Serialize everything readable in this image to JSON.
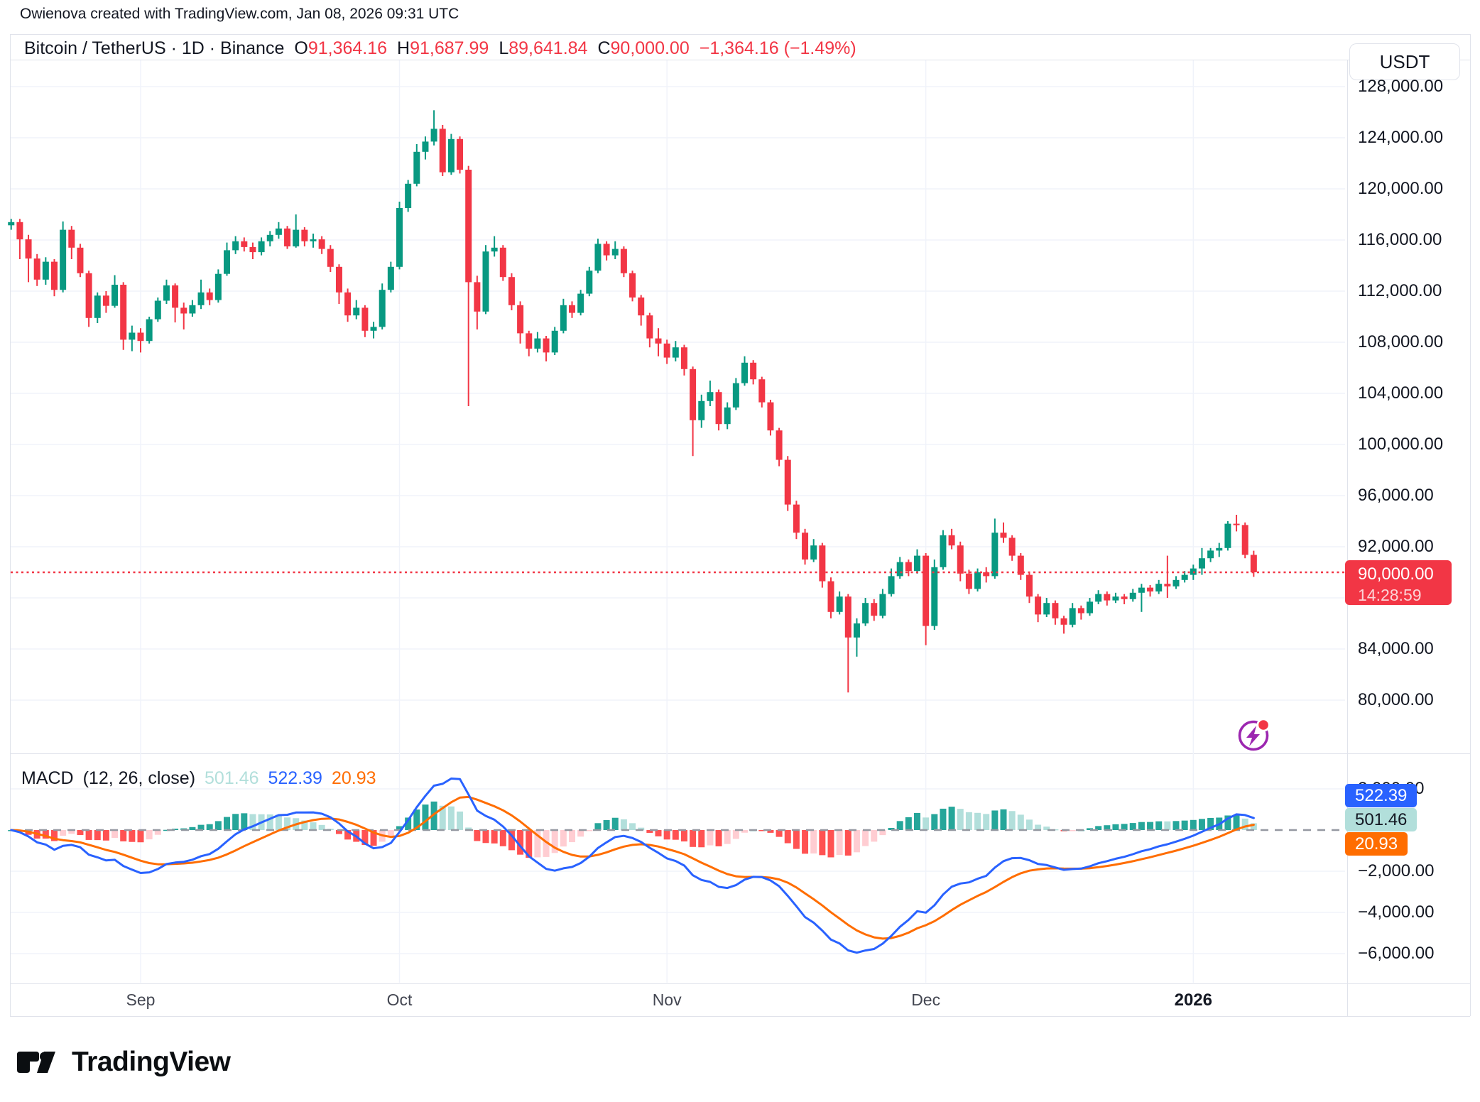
{
  "header": {
    "attribution": "Owienova created with TradingView.com, Jan 08, 2026 09:31 UTC"
  },
  "symbol": {
    "title": "Bitcoin / TetherUS · 1D · Binance",
    "o_label": "O",
    "o": "91,364.16",
    "h_label": "H",
    "h": "91,687.99",
    "l_label": "L",
    "l": "89,641.84",
    "c_label": "C",
    "c": "90,000.00",
    "change": "−1,364.16 (−1.49%)",
    "currency": "USDT"
  },
  "price_axis": {
    "last_price": "90,000.00",
    "countdown": "14:28:59",
    "ticks": [
      {
        "label": "128,000.00",
        "price": 128000
      },
      {
        "label": "124,000.00",
        "price": 124000
      },
      {
        "label": "120,000.00",
        "price": 120000
      },
      {
        "label": "116,000.00",
        "price": 116000
      },
      {
        "label": "112,000.00",
        "price": 112000
      },
      {
        "label": "108,000.00",
        "price": 108000
      },
      {
        "label": "104,000.00",
        "price": 104000
      },
      {
        "label": "100,000.00",
        "price": 100000
      },
      {
        "label": "96,000.00",
        "price": 96000
      },
      {
        "label": "92,000.00",
        "price": 92000
      },
      {
        "label": "84,000.00",
        "price": 84000
      },
      {
        "label": "80,000.00",
        "price": 80000
      }
    ]
  },
  "macd": {
    "title": "MACD",
    "params": "(12, 26, close)",
    "hist_value": "501.46",
    "macd_value": "522.39",
    "signal_value": "20.93",
    "axis_ticks": [
      {
        "label": "2,000.00",
        "value": 2000
      },
      {
        "label": "−2,000.00",
        "value": -2000
      },
      {
        "label": "−4,000.00",
        "value": -4000
      },
      {
        "label": "−6,000.00",
        "value": -6000
      }
    ]
  },
  "time_axis": {
    "labels": [
      {
        "text": "Sep",
        "index": 15,
        "year": false
      },
      {
        "text": "Oct",
        "index": 45,
        "year": false
      },
      {
        "text": "Nov",
        "index": 76,
        "year": false
      },
      {
        "text": "Dec",
        "index": 106,
        "year": false
      },
      {
        "text": "2026",
        "index": 137,
        "year": true
      }
    ]
  },
  "footer": {
    "brand": "TradingView"
  },
  "colors": {
    "up": "#089981",
    "down": "#f23645",
    "grid": "#f0f3fa",
    "border": "#e0e3eb",
    "macd_line": "#2962ff",
    "signal_line": "#ff6d00",
    "hist_up_grow": "#26a69a",
    "hist_up_fall": "#b2dfdb",
    "hist_dn_grow": "#ffcdd2",
    "hist_dn_fall": "#ff5252",
    "last_price": "#f23645",
    "zero_dash": "#9598a1",
    "alert_icon_purple": "#9c27b0",
    "alert_icon_dot": "#f23645"
  },
  "chart_data": {
    "type": "candlestick+macd",
    "title": "Bitcoin / TetherUS · 1D · Binance",
    "price_range_visible": [
      76000,
      130000
    ],
    "macd_range_visible": [
      -7000,
      3500
    ],
    "macd_params": [
      12,
      26,
      9
    ],
    "last_close": 90000.0,
    "candles": [
      [
        117150,
        117650,
        116800,
        117400
      ],
      [
        117400,
        117650,
        114500,
        116050
      ],
      [
        116050,
        116400,
        112700,
        114550
      ],
      [
        114550,
        114900,
        112400,
        112900
      ],
      [
        112900,
        114650,
        112500,
        114300
      ],
      [
        114300,
        114500,
        111600,
        112100
      ],
      [
        112100,
        117450,
        111900,
        116800
      ],
      [
        116800,
        117100,
        114500,
        115400
      ],
      [
        115400,
        115700,
        113100,
        113400
      ],
      [
        113400,
        113600,
        109200,
        109900
      ],
      [
        109900,
        111900,
        109500,
        111650
      ],
      [
        111650,
        112000,
        110300,
        110850
      ],
      [
        110850,
        113250,
        110700,
        112500
      ],
      [
        112500,
        112700,
        107400,
        108200
      ],
      [
        108200,
        109300,
        107300,
        108750
      ],
      [
        108750,
        109100,
        107200,
        108100
      ],
      [
        108100,
        110000,
        107900,
        109800
      ],
      [
        109800,
        111500,
        109600,
        111250
      ],
      [
        111250,
        112900,
        111000,
        112450
      ],
      [
        112450,
        112600,
        109550,
        110700
      ],
      [
        110700,
        111100,
        109000,
        110250
      ],
      [
        110250,
        111300,
        110000,
        110900
      ],
      [
        110900,
        112900,
        110600,
        111900
      ],
      [
        111900,
        112200,
        110900,
        111300
      ],
      [
        111300,
        113700,
        111100,
        113350
      ],
      [
        113350,
        115800,
        113200,
        115200
      ],
      [
        115200,
        116300,
        114900,
        115900
      ],
      [
        115900,
        116200,
        115100,
        115450
      ],
      [
        115450,
        115800,
        114500,
        115050
      ],
      [
        115050,
        116200,
        114800,
        115900
      ],
      [
        115900,
        116700,
        115500,
        116400
      ],
      [
        116400,
        117400,
        116100,
        116900
      ],
      [
        116900,
        117100,
        115300,
        115500
      ],
      [
        115500,
        118000,
        115400,
        116800
      ],
      [
        116800,
        117000,
        115500,
        115900
      ],
      [
        115900,
        116500,
        115400,
        116050
      ],
      [
        116050,
        116300,
        114900,
        115300
      ],
      [
        115300,
        115600,
        113500,
        113900
      ],
      [
        113900,
        114100,
        111000,
        111900
      ],
      [
        111900,
        112200,
        109600,
        110100
      ],
      [
        110100,
        111300,
        109800,
        110700
      ],
      [
        110700,
        110900,
        108400,
        108900
      ],
      [
        108900,
        109600,
        108300,
        109200
      ],
      [
        109200,
        112600,
        109000,
        112100
      ],
      [
        112100,
        114300,
        111900,
        113900
      ],
      [
        113900,
        119000,
        113700,
        118500
      ],
      [
        118500,
        120700,
        118200,
        120400
      ],
      [
        120400,
        123500,
        120200,
        122900
      ],
      [
        122900,
        124100,
        122300,
        123700
      ],
      [
        123700,
        126150,
        123400,
        124700
      ],
      [
        124700,
        125000,
        121000,
        121300
      ],
      [
        121300,
        124300,
        121100,
        123900
      ],
      [
        123900,
        124100,
        121200,
        121500
      ],
      [
        121500,
        121800,
        103000,
        112700
      ],
      [
        112700,
        113200,
        109000,
        110400
      ],
      [
        110400,
        115600,
        110200,
        115100
      ],
      [
        115100,
        116300,
        114700,
        115400
      ],
      [
        115400,
        115600,
        112800,
        113100
      ],
      [
        113100,
        113400,
        110500,
        110900
      ],
      [
        110900,
        111200,
        107900,
        108700
      ],
      [
        108700,
        108900,
        106900,
        107500
      ],
      [
        107500,
        108800,
        107200,
        108300
      ],
      [
        108300,
        108500,
        106500,
        107200
      ],
      [
        107200,
        109200,
        107000,
        108900
      ],
      [
        108900,
        111400,
        108700,
        110900
      ],
      [
        110900,
        111200,
        109900,
        110300
      ],
      [
        110300,
        112100,
        110100,
        111800
      ],
      [
        111800,
        113900,
        111600,
        113600
      ],
      [
        113600,
        116100,
        113400,
        115700
      ],
      [
        115700,
        115900,
        114400,
        114800
      ],
      [
        114800,
        115900,
        114500,
        115300
      ],
      [
        115300,
        115500,
        113100,
        113400
      ],
      [
        113400,
        113600,
        111200,
        111500
      ],
      [
        111500,
        111700,
        109300,
        110100
      ],
      [
        110100,
        110300,
        107600,
        108300
      ],
      [
        108300,
        109100,
        106900,
        107900
      ],
      [
        107900,
        108200,
        106300,
        106800
      ],
      [
        106800,
        108100,
        106500,
        107600
      ],
      [
        107600,
        107800,
        105400,
        105900
      ],
      [
        105900,
        106100,
        99100,
        101900
      ],
      [
        101900,
        103900,
        101300,
        103400
      ],
      [
        103400,
        105000,
        103000,
        104100
      ],
      [
        104100,
        104300,
        101100,
        101600
      ],
      [
        101600,
        103300,
        101200,
        102900
      ],
      [
        102900,
        105200,
        102700,
        104800
      ],
      [
        104800,
        106900,
        104600,
        106400
      ],
      [
        106400,
        106600,
        104700,
        105100
      ],
      [
        105100,
        105300,
        102900,
        103300
      ],
      [
        103300,
        103500,
        100700,
        101100
      ],
      [
        101100,
        101300,
        98300,
        98800
      ],
      [
        98800,
        99100,
        94800,
        95300
      ],
      [
        95300,
        95600,
        92600,
        93100
      ],
      [
        93100,
        93400,
        90600,
        91000
      ],
      [
        91000,
        92600,
        90800,
        92100
      ],
      [
        92100,
        92300,
        88800,
        89300
      ],
      [
        89300,
        89600,
        86400,
        86900
      ],
      [
        86900,
        88500,
        86700,
        88100
      ],
      [
        88100,
        88300,
        80600,
        84900
      ],
      [
        84900,
        86400,
        83400,
        86000
      ],
      [
        86000,
        88000,
        85800,
        87600
      ],
      [
        87600,
        87900,
        86200,
        86600
      ],
      [
        86600,
        88700,
        86400,
        88300
      ],
      [
        88300,
        90300,
        88100,
        89700
      ],
      [
        89700,
        91200,
        89500,
        90800
      ],
      [
        90800,
        91000,
        89700,
        90100
      ],
      [
        90100,
        91800,
        89900,
        91300
      ],
      [
        91300,
        91500,
        84300,
        85800
      ],
      [
        85800,
        91000,
        85500,
        90400
      ],
      [
        90400,
        93300,
        90200,
        92900
      ],
      [
        92900,
        93400,
        91800,
        92100
      ],
      [
        92100,
        92400,
        89300,
        89900
      ],
      [
        89900,
        90200,
        88300,
        88700
      ],
      [
        88700,
        90300,
        88500,
        90000
      ],
      [
        90000,
        90400,
        89200,
        89700
      ],
      [
        89700,
        94200,
        89500,
        93100
      ],
      [
        93100,
        93900,
        92300,
        92700
      ],
      [
        92700,
        92900,
        90900,
        91300
      ],
      [
        91300,
        91500,
        89400,
        89800
      ],
      [
        89800,
        90000,
        87600,
        88100
      ],
      [
        88100,
        88300,
        86100,
        86700
      ],
      [
        86700,
        88000,
        86500,
        87600
      ],
      [
        87600,
        87800,
        85900,
        86400
      ],
      [
        86400,
        86600,
        85200,
        85900
      ],
      [
        85900,
        87600,
        85700,
        87200
      ],
      [
        87200,
        87400,
        86300,
        86800
      ],
      [
        86800,
        88000,
        86600,
        87700
      ],
      [
        87700,
        88600,
        87500,
        88300
      ],
      [
        88300,
        88500,
        87400,
        87800
      ],
      [
        87800,
        88400,
        87600,
        88100
      ],
      [
        88100,
        88300,
        87500,
        87900
      ],
      [
        87900,
        88700,
        87700,
        88400
      ],
      [
        88400,
        89100,
        86900,
        88800
      ],
      [
        88800,
        89000,
        88100,
        88500
      ],
      [
        88500,
        89400,
        88300,
        89100
      ],
      [
        89100,
        91300,
        88000,
        88900
      ],
      [
        88900,
        89700,
        88700,
        89400
      ],
      [
        89400,
        90100,
        89200,
        89800
      ],
      [
        89800,
        90600,
        89400,
        90300
      ],
      [
        90300,
        91900,
        89800,
        91100
      ],
      [
        91100,
        91900,
        90800,
        91700
      ],
      [
        91700,
        92300,
        91200,
        91900
      ],
      [
        91900,
        94000,
        91700,
        93800
      ],
      [
        93800,
        94500,
        93200,
        93700
      ],
      [
        93700,
        93900,
        91100,
        91364.16
      ],
      [
        91364.16,
        91687.99,
        89641.84,
        90000
      ]
    ]
  }
}
